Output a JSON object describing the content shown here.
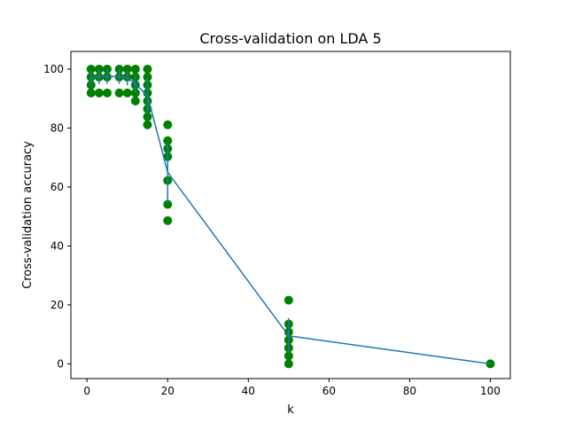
{
  "chart_data": {
    "type": "scatter",
    "title": "Cross-validation on LDA 5",
    "xlabel": "k",
    "ylabel": "Cross-validation accuracy",
    "xlim": [
      -4.0,
      104.95
    ],
    "ylim": [
      -5.0,
      106.0
    ],
    "x_ticks": [
      0,
      20,
      40,
      60,
      80,
      100
    ],
    "y_ticks": [
      0,
      20,
      40,
      60,
      80,
      100
    ],
    "grid": false,
    "colors": {
      "points": "#008000",
      "line": "#1f77b4",
      "axes": "#000000"
    },
    "series": [
      {
        "type": "scatter",
        "points": [
          [
            1,
            100
          ],
          [
            1,
            97.3
          ],
          [
            1,
            94.6
          ],
          [
            1,
            91.9
          ],
          [
            3,
            100
          ],
          [
            3,
            97.3
          ],
          [
            3,
            91.9
          ],
          [
            5,
            100
          ],
          [
            5,
            97.3
          ],
          [
            5,
            91.9
          ],
          [
            8,
            100
          ],
          [
            8,
            97.3
          ],
          [
            8,
            91.9
          ],
          [
            10,
            100
          ],
          [
            10,
            97.3
          ],
          [
            10,
            91.9
          ],
          [
            12,
            100
          ],
          [
            12,
            97.3
          ],
          [
            12,
            94.6
          ],
          [
            12,
            91.9
          ],
          [
            12,
            89.2
          ],
          [
            15,
            100
          ],
          [
            15,
            97.3
          ],
          [
            15,
            94.6
          ],
          [
            15,
            91.9
          ],
          [
            15,
            89.2
          ],
          [
            15,
            86.5
          ],
          [
            15,
            83.8
          ],
          [
            15,
            81.1
          ],
          [
            20,
            81.1
          ],
          [
            20,
            75.7
          ],
          [
            20,
            73.0
          ],
          [
            20,
            70.3
          ],
          [
            20,
            62.2
          ],
          [
            20,
            54.1
          ],
          [
            20,
            48.6
          ],
          [
            50,
            21.6
          ],
          [
            50,
            13.5
          ],
          [
            50,
            10.8
          ],
          [
            50,
            8.1
          ],
          [
            50,
            5.4
          ],
          [
            50,
            2.7
          ],
          [
            50,
            0
          ],
          [
            100,
            0
          ]
        ]
      },
      {
        "type": "line",
        "x": [
          1,
          3,
          5,
          8,
          10,
          12,
          15,
          20,
          50,
          100
        ],
        "y": [
          97.0,
          97.5,
          97.5,
          97.5,
          97.0,
          95.0,
          91.0,
          65.0,
          9.5,
          0
        ],
        "error": [
          2.5,
          2.5,
          2.5,
          2.5,
          2.5,
          3.0,
          6.0,
          10.0,
          6.0,
          0
        ]
      }
    ]
  }
}
